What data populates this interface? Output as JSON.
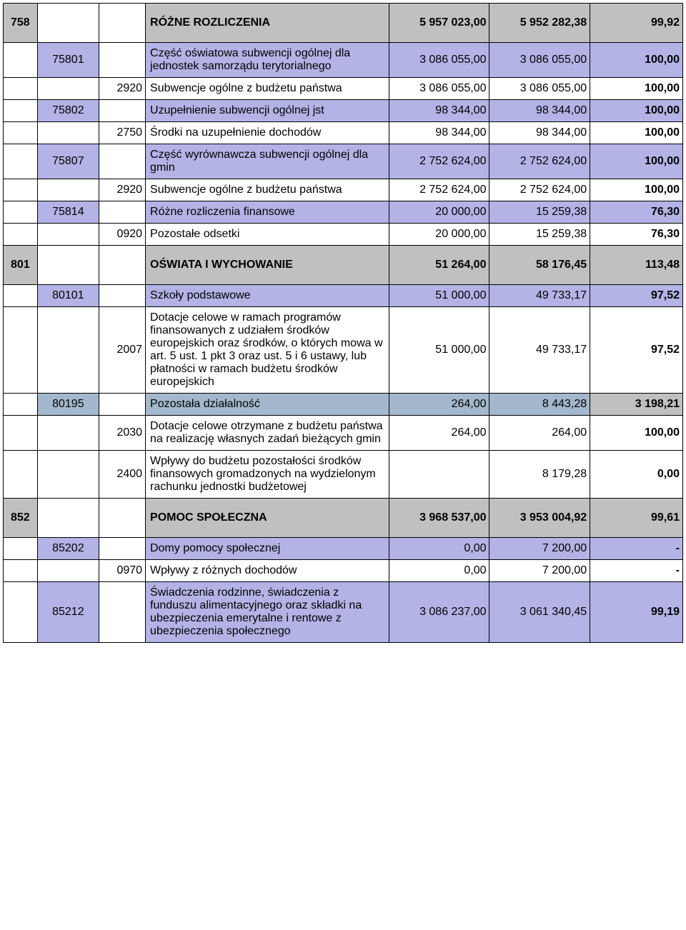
{
  "colors": {
    "gray": "#c0c0c0",
    "violet": "#b3b3e6",
    "steel": "#a3b8cc",
    "white": "#ffffff"
  },
  "rows": [
    {
      "bg": [
        "gray",
        "white",
        "white",
        "gray",
        "gray",
        "gray",
        "gray"
      ],
      "c1": "758",
      "c2": "",
      "c3": "",
      "c4": "RÓŻNE ROZLICZENIA",
      "c5": "5 957 023,00",
      "c6": "5 952 282,38",
      "c7": "99,92",
      "bold": [
        true,
        false,
        false,
        true,
        true,
        true,
        true
      ]
    },
    {
      "bg": [
        "white",
        "violet",
        "white",
        "violet",
        "violet",
        "violet",
        "violet"
      ],
      "c1": "",
      "c2": "75801",
      "c3": "",
      "c4": "Część oświatowa subwencji ogólnej dla jednostek samorządu terytorialnego",
      "c5": "3 086 055,00",
      "c6": "3 086 055,00",
      "c7": "100,00",
      "bold": [
        false,
        false,
        false,
        false,
        false,
        false,
        true
      ]
    },
    {
      "bg": [
        "white",
        "white",
        "white",
        "white",
        "white",
        "white",
        "white"
      ],
      "c1": "",
      "c2": "",
      "c3": "2920",
      "c4": "Subwencje ogólne z budżetu państwa",
      "c5": "3 086 055,00",
      "c6": "3 086 055,00",
      "c7": "100,00",
      "bold": [
        false,
        false,
        false,
        false,
        false,
        false,
        true
      ]
    },
    {
      "bg": [
        "white",
        "violet",
        "white",
        "violet",
        "violet",
        "violet",
        "violet"
      ],
      "c1": "",
      "c2": "75802",
      "c3": "",
      "c4": "Uzupełnienie subwencji ogólnej jst",
      "c5": "98 344,00",
      "c6": "98 344,00",
      "c7": "100,00",
      "bold": [
        false,
        false,
        false,
        false,
        false,
        false,
        true
      ]
    },
    {
      "bg": [
        "white",
        "white",
        "white",
        "white",
        "white",
        "white",
        "white"
      ],
      "c1": "",
      "c2": "",
      "c3": "2750",
      "c4": "Środki na uzupełnienie dochodów",
      "c5": "98 344,00",
      "c6": "98 344,00",
      "c7": "100,00",
      "bold": [
        false,
        false,
        false,
        false,
        false,
        false,
        true
      ]
    },
    {
      "bg": [
        "white",
        "violet",
        "white",
        "violet",
        "violet",
        "violet",
        "violet"
      ],
      "c1": "",
      "c2": "75807",
      "c3": "",
      "c4": "Część wyrównawcza subwencji ogólnej dla gmin",
      "c5": "2 752 624,00",
      "c6": "2 752 624,00",
      "c7": "100,00",
      "bold": [
        false,
        false,
        false,
        false,
        false,
        false,
        true
      ]
    },
    {
      "bg": [
        "white",
        "white",
        "white",
        "white",
        "white",
        "white",
        "white"
      ],
      "c1": "",
      "c2": "",
      "c3": "2920",
      "c4": "Subwencje ogólne z budżetu państwa",
      "c5": "2 752 624,00",
      "c6": "2 752 624,00",
      "c7": "100,00",
      "bold": [
        false,
        false,
        false,
        false,
        false,
        false,
        true
      ]
    },
    {
      "bg": [
        "white",
        "violet",
        "white",
        "violet",
        "violet",
        "violet",
        "violet"
      ],
      "c1": "",
      "c2": "75814",
      "c3": "",
      "c4": "Różne rozliczenia finansowe",
      "c5": "20 000,00",
      "c6": "15 259,38",
      "c7": "76,30",
      "bold": [
        false,
        false,
        false,
        false,
        false,
        false,
        true
      ]
    },
    {
      "bg": [
        "white",
        "white",
        "white",
        "white",
        "white",
        "white",
        "white"
      ],
      "c1": "",
      "c2": "",
      "c3": "0920",
      "c4": "Pozostałe odsetki",
      "c5": "20 000,00",
      "c6": "15 259,38",
      "c7": "76,30",
      "bold": [
        false,
        false,
        false,
        false,
        false,
        false,
        true
      ]
    },
    {
      "bg": [
        "gray",
        "white",
        "white",
        "gray",
        "gray",
        "gray",
        "gray"
      ],
      "c1": "801",
      "c2": "",
      "c3": "",
      "c4": "OŚWIATA I WYCHOWANIE",
      "c5": "51 264,00",
      "c6": "58 176,45",
      "c7": "113,48",
      "bold": [
        true,
        false,
        false,
        true,
        true,
        true,
        true
      ]
    },
    {
      "bg": [
        "white",
        "violet",
        "white",
        "violet",
        "violet",
        "violet",
        "violet"
      ],
      "c1": "",
      "c2": "80101",
      "c3": "",
      "c4": "Szkoły podstawowe",
      "c5": "51 000,00",
      "c6": "49 733,17",
      "c7": "97,52",
      "bold": [
        false,
        false,
        false,
        false,
        false,
        false,
        true
      ]
    },
    {
      "bg": [
        "white",
        "white",
        "white",
        "white",
        "white",
        "white",
        "white"
      ],
      "c1": "",
      "c2": "",
      "c3": "2007",
      "c4": "Dotacje celowe w ramach programów finansowanych z udziałem środków europejskich oraz środków, o których mowa w art. 5 ust. 1 pkt 3 oraz ust. 5 i 6 ustawy, lub płatności w ramach budżetu środków europejskich",
      "c5": "51 000,00",
      "c6": "49 733,17",
      "c7": "97,52",
      "bold": [
        false,
        false,
        false,
        false,
        false,
        false,
        true
      ]
    },
    {
      "bg": [
        "white",
        "steel",
        "white",
        "steel",
        "steel",
        "steel",
        "gray"
      ],
      "c1": "",
      "c2": "80195",
      "c3": "",
      "c4": "Pozostała działalność",
      "c5": "264,00",
      "c6": "8 443,28",
      "c7": "3 198,21",
      "bold": [
        false,
        false,
        false,
        false,
        false,
        false,
        true
      ]
    },
    {
      "bg": [
        "white",
        "white",
        "white",
        "white",
        "white",
        "white",
        "white"
      ],
      "c1": "",
      "c2": "",
      "c3": "2030",
      "c4": "Dotacje celowe otrzymane z budżetu państwa na realizację własnych zadań bieżących gmin",
      "c5": "264,00",
      "c6": "264,00",
      "c7": "100,00",
      "bold": [
        false,
        false,
        false,
        false,
        false,
        false,
        true
      ]
    },
    {
      "bg": [
        "white",
        "white",
        "white",
        "white",
        "white",
        "white",
        "white"
      ],
      "c1": "",
      "c2": "",
      "c3": "2400",
      "c4": "Wpływy do budżetu pozostałości środków finansowych gromadzonych na wydzielonym rachunku jednostki budżetowej",
      "c5": "",
      "c6": "8 179,28",
      "c7": "0,00",
      "bold": [
        false,
        false,
        false,
        false,
        false,
        false,
        true
      ]
    },
    {
      "bg": [
        "gray",
        "white",
        "white",
        "gray",
        "gray",
        "gray",
        "gray"
      ],
      "c1": "852",
      "c2": "",
      "c3": "",
      "c4": "POMOC SPOŁECZNA",
      "c5": "3 968 537,00",
      "c6": "3 953 004,92",
      "c7": "99,61",
      "bold": [
        true,
        false,
        false,
        true,
        true,
        true,
        true
      ]
    },
    {
      "bg": [
        "white",
        "violet",
        "white",
        "violet",
        "violet",
        "violet",
        "violet"
      ],
      "c1": "",
      "c2": "85202",
      "c3": "",
      "c4": "Domy pomocy społecznej",
      "c5": "0,00",
      "c6": "7 200,00",
      "c7": "-",
      "bold": [
        false,
        false,
        false,
        false,
        false,
        false,
        true
      ]
    },
    {
      "bg": [
        "white",
        "white",
        "white",
        "white",
        "white",
        "white",
        "white"
      ],
      "c1": "",
      "c2": "",
      "c3": "0970",
      "c4": "Wpływy z różnych dochodów",
      "c5": "0,00",
      "c6": "7 200,00",
      "c7": "-",
      "bold": [
        false,
        false,
        false,
        false,
        false,
        false,
        true
      ]
    },
    {
      "bg": [
        "white",
        "violet",
        "white",
        "violet",
        "violet",
        "violet",
        "violet"
      ],
      "c1": "",
      "c2": "85212",
      "c3": "",
      "c4": "Świadczenia rodzinne, świadczenia z funduszu alimentacyjnego oraz składki na ubezpieczenia emerytalne i rentowe z ubezpieczenia społecznego",
      "c5": "3 086 237,00",
      "c6": "3 061 340,45",
      "c7": "99,19",
      "bold": [
        false,
        false,
        false,
        false,
        false,
        false,
        true
      ]
    }
  ]
}
